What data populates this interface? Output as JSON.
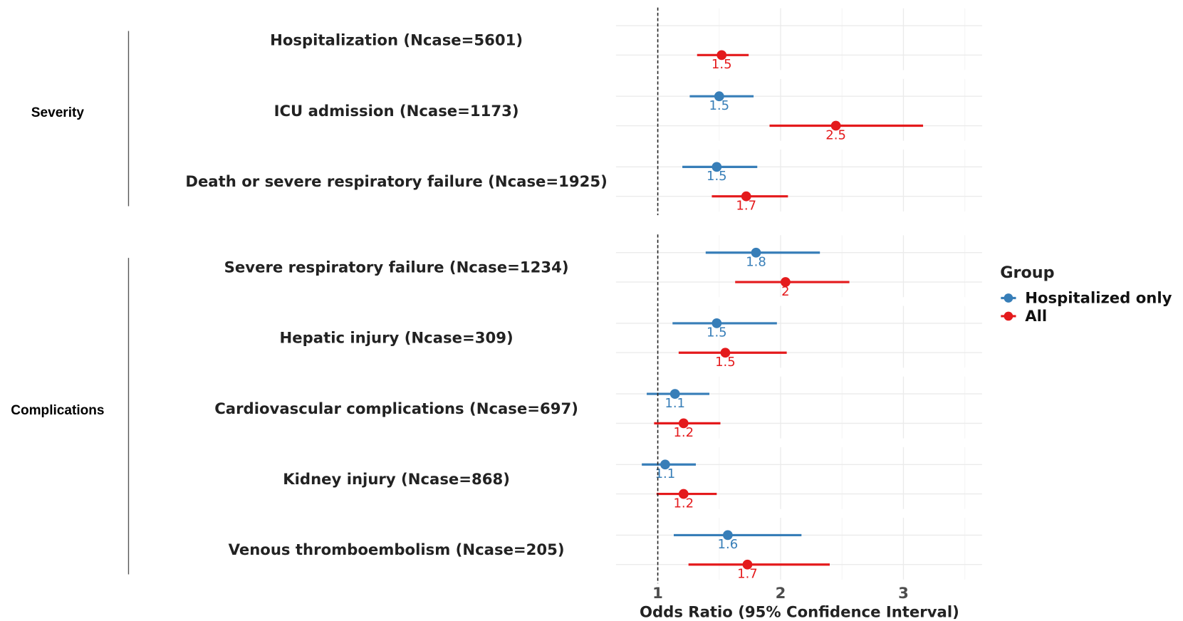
{
  "chart_data": {
    "type": "forest",
    "xlabel": "Odds Ratio (95% Confidence Interval)",
    "xlim": [
      0.66,
      3.64
    ],
    "xticks": [
      1,
      2,
      3
    ],
    "minor_xticks": [
      1.5,
      2.5,
      3.5
    ],
    "refline": 1,
    "grid": true,
    "legend_title": "Group",
    "legend_position": "right",
    "groups": [
      {
        "label": "Severity",
        "categories": [
          "Hospitalization (Ncase=5601)",
          "ICU admission (Ncase=1173)",
          "Death or severe respiratory failure (Ncase=1925)"
        ]
      },
      {
        "label": "Complications",
        "categories": [
          "Severe respiratory failure (Ncase=1234)",
          "Hepatic injury (Ncase=309)",
          "Cardiovascular complications (Ncase=697)",
          "Kidney injury (Ncase=868)",
          "Venous thromboembolism (Ncase=205)"
        ]
      }
    ],
    "series": [
      {
        "name": "Hospitalized only",
        "color": "#377eb8",
        "values": [
          null,
          1.5,
          1.48,
          1.8,
          1.48,
          1.14,
          1.06,
          1.57
        ],
        "lower": [
          null,
          1.26,
          1.2,
          1.39,
          1.12,
          0.91,
          0.87,
          1.13
        ],
        "upper": [
          null,
          1.78,
          1.81,
          2.32,
          1.97,
          1.42,
          1.31,
          2.17
        ],
        "value_labels": [
          null,
          "1.5",
          "1.5",
          "1.8",
          "1.5",
          "1.1",
          "1.1",
          "1.6"
        ]
      },
      {
        "name": "All",
        "color": "#e41a1c",
        "values": [
          1.52,
          2.45,
          1.72,
          2.04,
          1.55,
          1.21,
          1.21,
          1.73
        ],
        "lower": [
          1.32,
          1.91,
          1.44,
          1.63,
          1.17,
          0.97,
          0.99,
          1.25
        ],
        "upper": [
          1.74,
          3.16,
          2.06,
          2.56,
          2.05,
          1.51,
          1.48,
          2.4
        ],
        "value_labels": [
          "1.5",
          "2.5",
          "1.7",
          "2",
          "1.5",
          "1.2",
          "1.2",
          "1.7"
        ]
      }
    ]
  }
}
